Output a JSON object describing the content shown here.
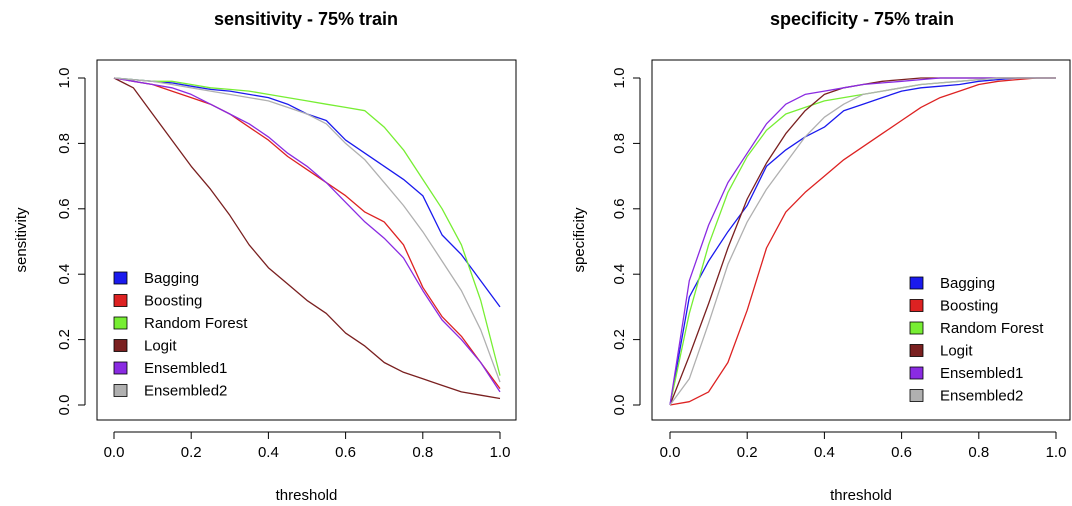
{
  "chart_data": [
    {
      "type": "line",
      "title": "sensitivity - 75% train",
      "xlabel": "threshold",
      "ylabel": "sensitivity",
      "xlim": [
        0,
        1
      ],
      "ylim": [
        0,
        1
      ],
      "xticks": [
        "0.0",
        "0.2",
        "0.4",
        "0.6",
        "0.8",
        "1.0"
      ],
      "yticks": [
        "0.0",
        "0.2",
        "0.4",
        "0.6",
        "0.8",
        "1.0"
      ],
      "legend_position": "bottom-left",
      "x": [
        0,
        0.05,
        0.1,
        0.15,
        0.2,
        0.25,
        0.3,
        0.35,
        0.4,
        0.45,
        0.5,
        0.55,
        0.6,
        0.65,
        0.7,
        0.75,
        0.8,
        0.85,
        0.9,
        0.95,
        1.0
      ],
      "series": [
        {
          "name": "Bagging",
          "color": "#1a1aee",
          "values": [
            1.0,
            0.995,
            0.99,
            0.985,
            0.975,
            0.965,
            0.96,
            0.95,
            0.94,
            0.92,
            0.89,
            0.87,
            0.81,
            0.77,
            0.73,
            0.69,
            0.64,
            0.52,
            0.46,
            0.38,
            0.3
          ]
        },
        {
          "name": "Boosting",
          "color": "#dd2222",
          "values": [
            1.0,
            0.99,
            0.98,
            0.96,
            0.94,
            0.92,
            0.89,
            0.85,
            0.81,
            0.76,
            0.72,
            0.68,
            0.64,
            0.59,
            0.56,
            0.49,
            0.36,
            0.27,
            0.21,
            0.13,
            0.05
          ]
        },
        {
          "name": "Random Forest",
          "color": "#77ee33",
          "values": [
            1.0,
            0.995,
            0.99,
            0.99,
            0.98,
            0.97,
            0.965,
            0.96,
            0.95,
            0.94,
            0.93,
            0.92,
            0.91,
            0.9,
            0.85,
            0.78,
            0.69,
            0.6,
            0.49,
            0.32,
            0.09
          ]
        },
        {
          "name": "Logit",
          "color": "#7a2020",
          "values": [
            1.0,
            0.97,
            0.89,
            0.81,
            0.73,
            0.66,
            0.58,
            0.49,
            0.42,
            0.37,
            0.32,
            0.28,
            0.22,
            0.18,
            0.13,
            0.1,
            0.08,
            0.06,
            0.04,
            0.03,
            0.02
          ]
        },
        {
          "name": "Ensembled1",
          "color": "#8a2be2",
          "values": [
            1.0,
            0.99,
            0.98,
            0.97,
            0.95,
            0.92,
            0.89,
            0.86,
            0.82,
            0.77,
            0.73,
            0.68,
            0.62,
            0.56,
            0.51,
            0.45,
            0.35,
            0.26,
            0.2,
            0.13,
            0.04
          ]
        },
        {
          "name": "Ensembled2",
          "color": "#b0b0b0",
          "values": [
            1.0,
            0.995,
            0.99,
            0.98,
            0.97,
            0.96,
            0.95,
            0.94,
            0.93,
            0.91,
            0.89,
            0.86,
            0.8,
            0.75,
            0.68,
            0.61,
            0.53,
            0.44,
            0.35,
            0.23,
            0.07
          ]
        }
      ]
    },
    {
      "type": "line",
      "title": "specificity - 75% train",
      "xlabel": "threshold",
      "ylabel": "specificity",
      "xlim": [
        0,
        1
      ],
      "ylim": [
        0,
        1
      ],
      "xticks": [
        "0.0",
        "0.2",
        "0.4",
        "0.6",
        "0.8",
        "1.0"
      ],
      "yticks": [
        "0.0",
        "0.2",
        "0.4",
        "0.6",
        "0.8",
        "1.0"
      ],
      "legend_position": "bottom-right",
      "x": [
        0,
        0.05,
        0.1,
        0.15,
        0.2,
        0.25,
        0.3,
        0.35,
        0.4,
        0.45,
        0.5,
        0.55,
        0.6,
        0.65,
        0.7,
        0.75,
        0.8,
        0.85,
        0.9,
        0.95,
        1.0
      ],
      "series": [
        {
          "name": "Bagging",
          "color": "#1a1aee",
          "values": [
            0.0,
            0.33,
            0.44,
            0.53,
            0.61,
            0.73,
            0.78,
            0.82,
            0.85,
            0.9,
            0.92,
            0.94,
            0.96,
            0.97,
            0.975,
            0.98,
            0.99,
            0.995,
            1.0,
            1.0,
            1.0
          ]
        },
        {
          "name": "Boosting",
          "color": "#dd2222",
          "values": [
            0.0,
            0.01,
            0.04,
            0.13,
            0.29,
            0.48,
            0.59,
            0.65,
            0.7,
            0.75,
            0.79,
            0.83,
            0.87,
            0.91,
            0.94,
            0.96,
            0.98,
            0.99,
            0.995,
            1.0,
            1.0
          ]
        },
        {
          "name": "Random Forest",
          "color": "#77ee33",
          "values": [
            0.0,
            0.28,
            0.49,
            0.65,
            0.76,
            0.84,
            0.89,
            0.91,
            0.93,
            0.94,
            0.95,
            0.96,
            0.97,
            0.98,
            0.985,
            0.99,
            0.995,
            1.0,
            1.0,
            1.0,
            1.0
          ]
        },
        {
          "name": "Logit",
          "color": "#7a2020",
          "values": [
            0.0,
            0.15,
            0.31,
            0.48,
            0.63,
            0.74,
            0.83,
            0.9,
            0.95,
            0.97,
            0.98,
            0.99,
            0.995,
            1.0,
            1.0,
            1.0,
            1.0,
            1.0,
            1.0,
            1.0,
            1.0
          ]
        },
        {
          "name": "Ensembled1",
          "color": "#8a2be2",
          "values": [
            0.0,
            0.38,
            0.55,
            0.68,
            0.77,
            0.86,
            0.92,
            0.95,
            0.96,
            0.97,
            0.98,
            0.985,
            0.99,
            0.995,
            1.0,
            1.0,
            1.0,
            1.0,
            1.0,
            1.0,
            1.0
          ]
        },
        {
          "name": "Ensembled2",
          "color": "#b0b0b0",
          "values": [
            0.0,
            0.08,
            0.25,
            0.43,
            0.56,
            0.66,
            0.74,
            0.82,
            0.88,
            0.92,
            0.95,
            0.96,
            0.97,
            0.98,
            0.985,
            0.99,
            0.995,
            1.0,
            1.0,
            1.0,
            1.0
          ]
        }
      ]
    }
  ]
}
